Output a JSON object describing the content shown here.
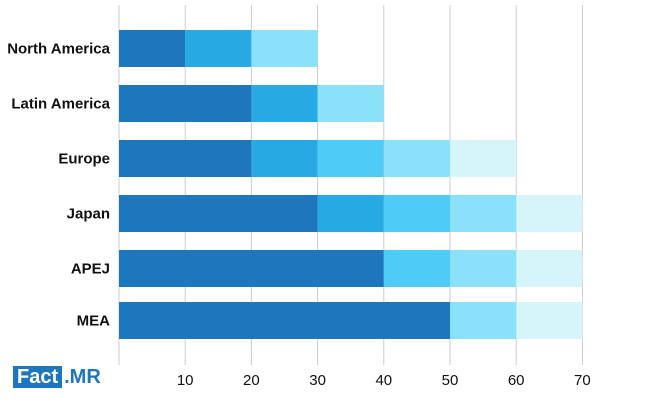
{
  "chart_data": {
    "type": "bar",
    "orientation": "horizontal",
    "stacked": true,
    "categories": [
      "North America",
      "Latin America",
      "Europe",
      "Japan",
      "APEJ",
      "MEA"
    ],
    "segments": [
      [
        10,
        10,
        10
      ],
      [
        20,
        10,
        10
      ],
      [
        20,
        10,
        10,
        10,
        10
      ],
      [
        30,
        10,
        10,
        10,
        10
      ],
      [
        40,
        10,
        10,
        10
      ],
      [
        50,
        10,
        10
      ]
    ],
    "segment_colors": [
      [
        "#1e77bd",
        "#27a9e4",
        "#8ce1fa"
      ],
      [
        "#1e77bd",
        "#27a9e4",
        "#8ce1fa"
      ],
      [
        "#1e77bd",
        "#27a9e4",
        "#4ecbf6",
        "#8ce1fa",
        "#d6f5fb"
      ],
      [
        "#1e77bd",
        "#27a9e4",
        "#4ecbf6",
        "#8ce1fa",
        "#d6f5fb"
      ],
      [
        "#1e77bd",
        "#4ecbf6",
        "#8ce1fa",
        "#d6f5fb"
      ],
      [
        "#1e77bd",
        "#8ce1fa",
        "#d6f5fb"
      ]
    ],
    "x_ticks": [
      "10",
      "20",
      "30",
      "40",
      "50",
      "60",
      "70"
    ],
    "xlim": [
      0,
      70
    ],
    "grid": true,
    "legend": "none",
    "title": "",
    "xlabel": "",
    "ylabel": ""
  },
  "logo": {
    "part1": "Fact",
    "part2": ".MR"
  },
  "colors": {
    "gridline": "#cccccc",
    "brand": "#1e77bd"
  }
}
